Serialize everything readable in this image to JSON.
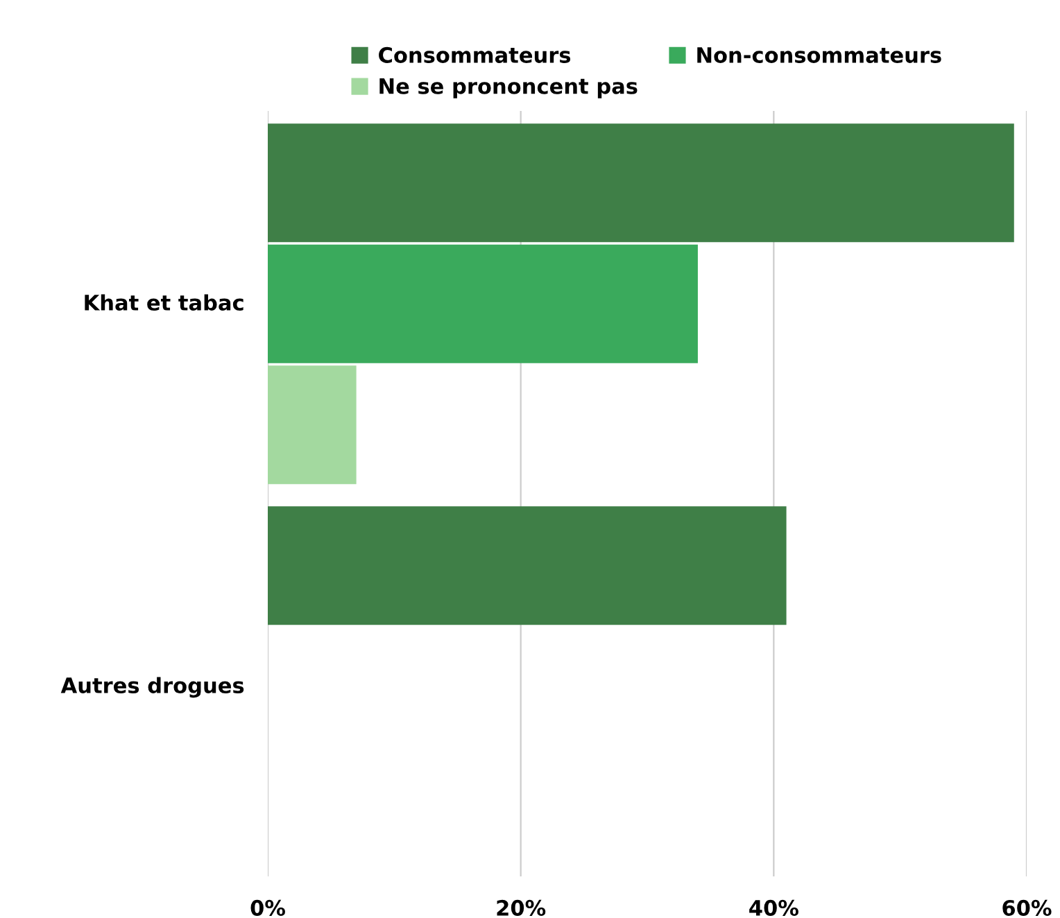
{
  "chart_data": {
    "type": "bar",
    "orientation": "horizontal",
    "categories": [
      "Khat et tabac",
      "Autres drogues"
    ],
    "series": [
      {
        "name": "Consommateurs",
        "color": "#3f7f47",
        "values": [
          59,
          41
        ]
      },
      {
        "name": "Non-consommateurs",
        "color": "#3aaa5c",
        "values": [
          34,
          0
        ]
      },
      {
        "name": "Ne se prononcent pas",
        "color": "#a3d99f",
        "values": [
          7,
          0
        ]
      }
    ],
    "xlim": [
      0,
      60
    ],
    "xticks": [
      {
        "value": 0,
        "label": "0%"
      },
      {
        "value": 20,
        "label": "20%"
      },
      {
        "value": 40,
        "label": "40%"
      },
      {
        "value": 60,
        "label": "60%"
      }
    ],
    "grid": "x",
    "legend": "top"
  }
}
